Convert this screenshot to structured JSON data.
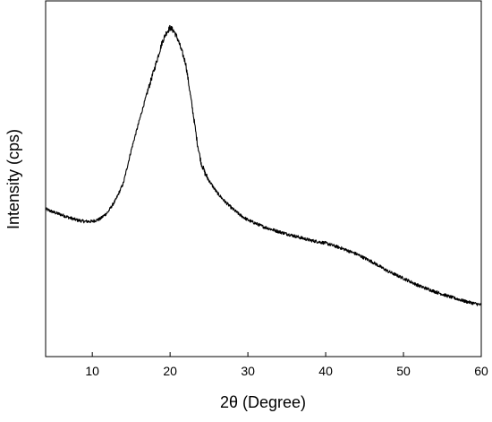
{
  "chart_data": {
    "type": "line",
    "title": "",
    "xlabel": "2θ (Degree)",
    "ylabel": "Intensity (cps)",
    "xlim": [
      4,
      60
    ],
    "ylim": [
      0,
      100
    ],
    "x_ticks": [
      10,
      20,
      30,
      40,
      50,
      60
    ],
    "x_tick_labels": [
      "10",
      "20",
      "30",
      "40",
      "50",
      "60"
    ],
    "y_ticks": [],
    "y_tick_labels_shown": false,
    "grid": false,
    "legend": "none",
    "line_color": "#000000",
    "series": [
      {
        "x": [
          4,
          5,
          6,
          7,
          8,
          9,
          10,
          11,
          12,
          13,
          14,
          15,
          16,
          17,
          18,
          19,
          19.5,
          20,
          20.5,
          21,
          22,
          23,
          23.5,
          24,
          24.5,
          25,
          26,
          27,
          28,
          29,
          30,
          32,
          34,
          36,
          38,
          40,
          42,
          44,
          46,
          48,
          50,
          52,
          54,
          56,
          58,
          60
        ],
        "values": [
          41.5,
          40.6,
          39.9,
          39.1,
          38.4,
          38.0,
          38.0,
          38.7,
          40.6,
          44.0,
          48.8,
          58.0,
          66.0,
          73.8,
          81.0,
          88.5,
          91.0,
          92.5,
          91.5,
          89.2,
          82.5,
          67.8,
          60.0,
          54.4,
          51.5,
          49.5,
          46.2,
          43.7,
          41.6,
          39.8,
          38.4,
          36.5,
          35.1,
          33.9,
          32.7,
          31.9,
          30.5,
          28.8,
          26.6,
          24.0,
          22.0,
          19.9,
          18.3,
          16.8,
          15.5,
          14.5
        ]
      }
    ]
  }
}
